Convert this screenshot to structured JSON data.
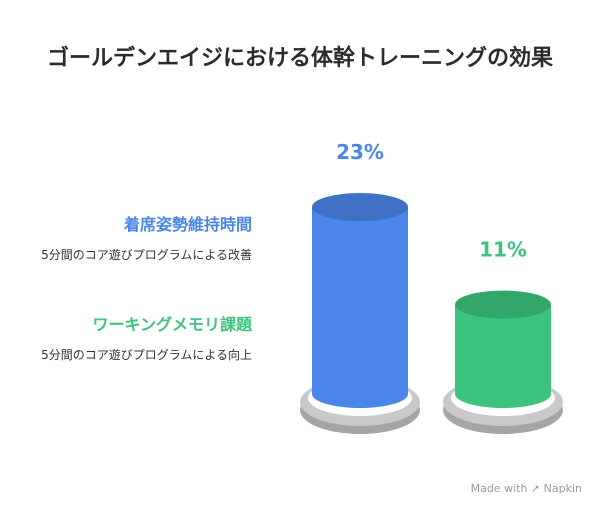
{
  "chart_data": {
    "type": "bar",
    "title": "ゴールデンエイジにおける体幹トレーニングの効果",
    "categories": [
      "着席姿勢維持時間",
      "ワーキングメモリ課題"
    ],
    "descriptions": [
      "5分間のコア遊びプログラムによる改善",
      "5分間のコア遊びプログラムによる向上"
    ],
    "values": [
      23,
      11
    ],
    "value_labels": [
      "23%",
      "11%"
    ],
    "colors": [
      "#4a86e8",
      "#3cc47c"
    ],
    "unit": "%"
  },
  "watermark": {
    "text": "Made with",
    "brand": "Napkin"
  }
}
